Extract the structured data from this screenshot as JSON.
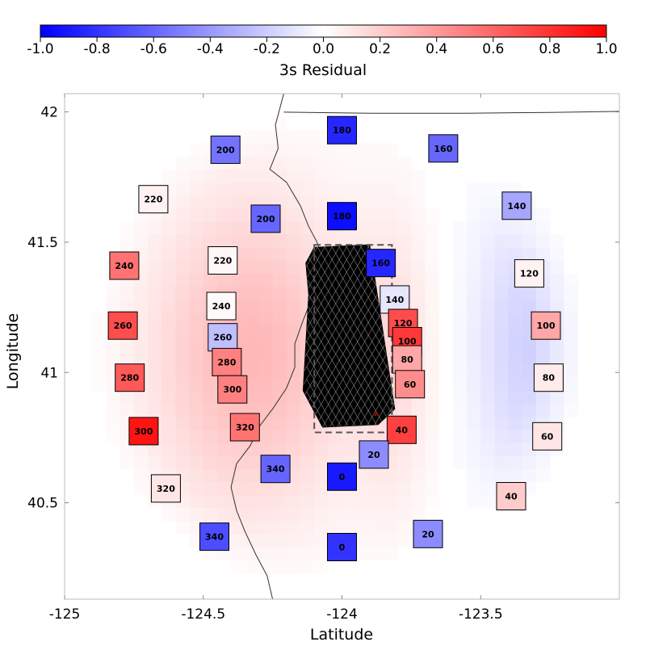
{
  "chart_data": {
    "type": "heatmap",
    "title": "",
    "xlabel": "Latitude",
    "ylabel": "Longitude",
    "xlim": [
      -125.0,
      -123.0
    ],
    "ylim": [
      40.13,
      42.07
    ],
    "x_ticks": [
      -125,
      -124.5,
      -124,
      -123.5
    ],
    "x_tick_labels": [
      "-125",
      "-124.5",
      "-124",
      "-123.5"
    ],
    "y_ticks": [
      40.5,
      41,
      41.5,
      42
    ],
    "y_tick_labels": [
      "40.5",
      "41",
      "41.5",
      "42"
    ],
    "grid": false,
    "colorbar": {
      "label": "3s Residual",
      "orientation": "horizontal",
      "placement": "top",
      "colormap": "bwr",
      "min": -1.0,
      "max": 1.0,
      "ticks": [
        -1.0,
        -0.8,
        -0.6,
        -0.4,
        -0.2,
        0.0,
        0.2,
        0.4,
        0.6,
        0.8,
        1.0
      ],
      "tick_labels": [
        "-1.0",
        "-0.8",
        "-0.6",
        "-0.4",
        "-0.2",
        "0.0",
        "0.2",
        "0.4",
        "0.6",
        "0.8",
        "1.0"
      ],
      "colors": {
        "low": "#0000ff",
        "mid": "#ffffff",
        "high": "#ff0000"
      }
    },
    "residual_field": {
      "grid_step": 0.05,
      "lobes": [
        {
          "center": [
            -124.33,
            41.07
          ],
          "radius_x": 0.36,
          "radius_y": 0.6,
          "value": 0.28
        },
        {
          "center": [
            -123.82,
            41.05
          ],
          "radius_x": 0.14,
          "radius_y": 0.55,
          "value": 0.12
        },
        {
          "center": [
            -123.33,
            41.1
          ],
          "radius_x": 0.2,
          "radius_y": 0.55,
          "value": -0.18
        }
      ],
      "extent": {
        "center": [
          -124.05,
          41.1
        ],
        "radius_x": 0.92,
        "radius_y": 0.95
      }
    },
    "stations": [
      {
        "label": "180",
        "lon": -124.0,
        "lat": 41.93,
        "residual": -0.85
      },
      {
        "label": "160",
        "lon": -123.635,
        "lat": 41.86,
        "residual": -0.6
      },
      {
        "label": "200",
        "lon": -124.42,
        "lat": 41.855,
        "residual": -0.55
      },
      {
        "label": "220",
        "lon": -124.68,
        "lat": 41.665,
        "residual": 0.05
      },
      {
        "label": "180",
        "lon": -124.0,
        "lat": 41.6,
        "residual": -0.95
      },
      {
        "label": "200",
        "lon": -124.275,
        "lat": 41.59,
        "residual": -0.6
      },
      {
        "label": "140",
        "lon": -123.37,
        "lat": 41.64,
        "residual": -0.35
      },
      {
        "label": "240",
        "lon": -124.785,
        "lat": 41.41,
        "residual": 0.55
      },
      {
        "label": "220",
        "lon": -124.43,
        "lat": 41.43,
        "residual": 0.03
      },
      {
        "label": "160",
        "lon": -123.86,
        "lat": 41.42,
        "residual": -0.85
      },
      {
        "label": "120",
        "lon": -123.325,
        "lat": 41.38,
        "residual": 0.05
      },
      {
        "label": "240",
        "lon": -124.435,
        "lat": 41.255,
        "residual": 0.02
      },
      {
        "label": "140",
        "lon": -123.81,
        "lat": 41.28,
        "residual": -0.1
      },
      {
        "label": "260",
        "lon": -124.79,
        "lat": 41.18,
        "residual": 0.7
      },
      {
        "label": "260",
        "lon": -124.43,
        "lat": 41.135,
        "residual": -0.25
      },
      {
        "label": "120",
        "lon": -123.78,
        "lat": 41.19,
        "residual": 0.7
      },
      {
        "label": "100",
        "lon": -123.265,
        "lat": 41.18,
        "residual": 0.35
      },
      {
        "label": "100",
        "lon": -123.765,
        "lat": 41.12,
        "residual": 0.78
      },
      {
        "label": "280",
        "lon": -124.415,
        "lat": 41.04,
        "residual": 0.5
      },
      {
        "label": "80",
        "lon": -123.765,
        "lat": 41.05,
        "residual": 0.35
      },
      {
        "label": "280",
        "lon": -124.765,
        "lat": 40.98,
        "residual": 0.65
      },
      {
        "label": "80",
        "lon": -123.255,
        "lat": 40.98,
        "residual": 0.08
      },
      {
        "label": "60",
        "lon": -123.755,
        "lat": 40.955,
        "residual": 0.45
      },
      {
        "label": "300",
        "lon": -124.395,
        "lat": 40.935,
        "residual": 0.5
      },
      {
        "label": "40",
        "lon": -123.785,
        "lat": 40.78,
        "residual": 0.75
      },
      {
        "label": "300",
        "lon": -124.715,
        "lat": 40.775,
        "residual": 0.92
      },
      {
        "label": "320",
        "lon": -124.35,
        "lat": 40.79,
        "residual": 0.55
      },
      {
        "label": "60",
        "lon": -123.26,
        "lat": 40.755,
        "residual": 0.1
      },
      {
        "label": "20",
        "lon": -123.885,
        "lat": 40.685,
        "residual": -0.45
      },
      {
        "label": "340",
        "lon": -124.24,
        "lat": 40.63,
        "residual": -0.6
      },
      {
        "label": "0",
        "lon": -124.0,
        "lat": 40.6,
        "residual": -0.9
      },
      {
        "label": "320",
        "lon": -124.635,
        "lat": 40.555,
        "residual": 0.1
      },
      {
        "label": "40",
        "lon": -123.39,
        "lat": 40.525,
        "residual": 0.2
      },
      {
        "label": "340",
        "lon": -124.46,
        "lat": 40.37,
        "residual": -0.7
      },
      {
        "label": "20",
        "lon": -123.69,
        "lat": 40.38,
        "residual": -0.45
      },
      {
        "label": "0",
        "lon": -124.0,
        "lat": 40.33,
        "residual": -0.8
      }
    ],
    "fault_mesh": {
      "outline": [
        [
          -124.1,
          41.48
        ],
        [
          -123.9,
          41.49
        ],
        [
          -123.81,
          40.86
        ],
        [
          -123.87,
          40.8
        ],
        [
          -124.07,
          40.79
        ],
        [
          -124.14,
          40.93
        ],
        [
          -124.12,
          41.3
        ],
        [
          -124.13,
          41.42
        ]
      ],
      "bounding_box": {
        "lon_min": -124.1,
        "lon_max": -123.82,
        "lat_min": 40.77,
        "lat_max": 41.49
      },
      "epicenter": [
        -123.88,
        40.84
      ]
    },
    "coastline": [
      [
        -124.21,
        42.07
      ],
      [
        -124.24,
        41.95
      ],
      [
        -124.23,
        41.86
      ],
      [
        -124.26,
        41.78
      ],
      [
        -124.2,
        41.73
      ],
      [
        -124.15,
        41.64
      ],
      [
        -124.12,
        41.56
      ],
      [
        -124.09,
        41.5
      ],
      [
        -124.07,
        41.44
      ],
      [
        -124.09,
        41.36
      ],
      [
        -124.11,
        41.28
      ],
      [
        -124.14,
        41.2
      ],
      [
        -124.17,
        41.11
      ],
      [
        -124.17,
        41.02
      ],
      [
        -124.2,
        40.94
      ],
      [
        -124.25,
        40.86
      ],
      [
        -124.3,
        40.79
      ],
      [
        -124.33,
        40.72
      ],
      [
        -124.38,
        40.65
      ],
      [
        -124.4,
        40.56
      ],
      [
        -124.38,
        40.47
      ],
      [
        -124.35,
        40.39
      ],
      [
        -124.31,
        40.3
      ],
      [
        -124.27,
        40.22
      ],
      [
        -124.25,
        40.13
      ]
    ],
    "border": [
      [
        -124.21,
        41.999
      ],
      [
        -123.9,
        41.995
      ],
      [
        -123.55,
        41.995
      ],
      [
        -123.25,
        41.998
      ],
      [
        -123.0,
        42.002
      ]
    ]
  }
}
